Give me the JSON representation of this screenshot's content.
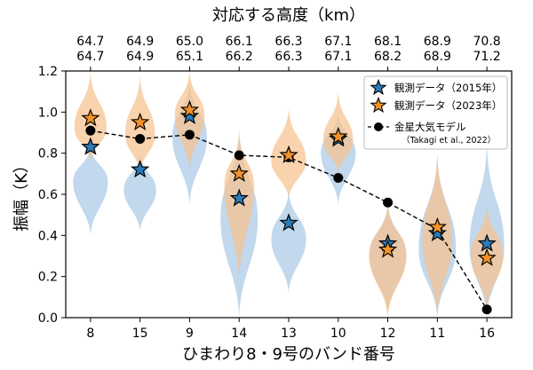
{
  "chart_data": {
    "type": "violin",
    "ylabel": "振幅（K）",
    "xlabel": "ひまわり8・9号のバンド番号",
    "top_xlabel": "対応する高度（km）",
    "ylim": [
      0.0,
      1.2
    ],
    "yticks": [
      "0.0",
      "0.2",
      "0.4",
      "0.6",
      "0.8",
      "1.0",
      "1.2"
    ],
    "categories": [
      "8",
      "15",
      "9",
      "14",
      "13",
      "10",
      "12",
      "11",
      "16"
    ],
    "altitudes_2015": [
      "64.7",
      "64.9",
      "65.0",
      "66.1",
      "66.3",
      "67.1",
      "68.1",
      "68.9",
      "70.8"
    ],
    "altitudes_2023": [
      "64.7",
      "64.9",
      "65.1",
      "66.2",
      "66.3",
      "67.1",
      "68.2",
      "68.9",
      "71.2"
    ],
    "series": [
      {
        "name": "観測データ（2015年）",
        "marker": "star",
        "color": "#2b7bb9",
        "violin_color": "#a9c9e6",
        "values": [
          0.83,
          0.72,
          0.98,
          0.58,
          0.46,
          0.87,
          0.36,
          0.41,
          0.36
        ],
        "violins": [
          {
            "center": 0.66,
            "min": 0.4,
            "max": 0.84,
            "width": 0.7
          },
          {
            "center": 0.62,
            "min": 0.42,
            "max": 0.8,
            "width": 0.65
          },
          {
            "center": 0.88,
            "min": 0.55,
            "max": 1.15,
            "width": 0.7
          },
          {
            "center": 0.48,
            "min": 0.0,
            "max": 0.92,
            "width": 0.75
          },
          {
            "center": 0.38,
            "min": 0.12,
            "max": 0.62,
            "width": 0.7
          },
          {
            "center": 0.8,
            "min": 0.55,
            "max": 1.0,
            "width": 0.7
          },
          {
            "center": 0.3,
            "min": 0.02,
            "max": 0.56,
            "width": 0.75
          },
          {
            "center": 0.33,
            "min": 0.0,
            "max": 0.8,
            "width": 0.75
          },
          {
            "center": 0.34,
            "min": 0.0,
            "max": 0.85,
            "width": 0.7
          }
        ]
      },
      {
        "name": "観測データ（2023年）",
        "marker": "star",
        "color": "#f2922a",
        "violin_color": "#f6c28e",
        "values": [
          0.97,
          0.95,
          1.01,
          0.7,
          0.79,
          0.88,
          0.33,
          0.44,
          0.29
        ],
        "violins": [
          {
            "center": 0.92,
            "min": 0.76,
            "max": 1.2,
            "width": 0.65
          },
          {
            "center": 0.89,
            "min": 0.7,
            "max": 1.18,
            "width": 0.6
          },
          {
            "center": 0.98,
            "min": 0.72,
            "max": 1.2,
            "width": 0.6
          },
          {
            "center": 0.64,
            "min": 0.18,
            "max": 0.9,
            "width": 0.6
          },
          {
            "center": 0.76,
            "min": 0.58,
            "max": 1.02,
            "width": 0.7
          },
          {
            "center": 0.86,
            "min": 0.7,
            "max": 1.1,
            "width": 0.6
          },
          {
            "center": 0.3,
            "min": 0.0,
            "max": 0.56,
            "width": 0.75
          },
          {
            "center": 0.37,
            "min": 0.0,
            "max": 0.8,
            "width": 0.6
          },
          {
            "center": 0.3,
            "min": 0.04,
            "max": 0.55,
            "width": 0.65
          }
        ]
      },
      {
        "name": "金星大気モデル",
        "name_sub": "（Takagi et al., 2022）",
        "marker": "circle",
        "line": "dashed",
        "color": "#000000",
        "values": [
          0.91,
          0.87,
          0.89,
          0.79,
          0.78,
          0.68,
          0.56,
          0.43,
          0.04
        ]
      }
    ],
    "legend_position": "top-right"
  }
}
